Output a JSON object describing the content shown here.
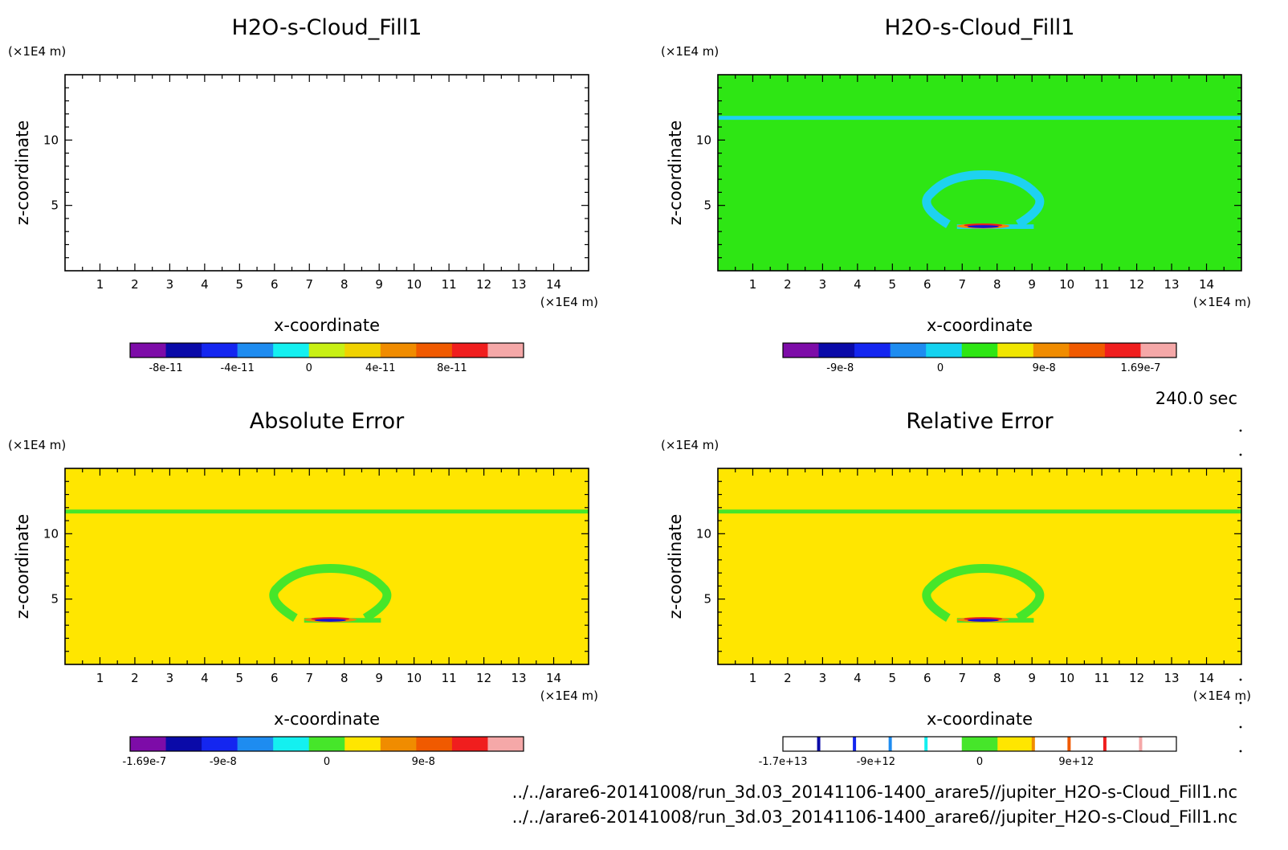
{
  "chart_data": [
    {
      "type": "heatmap",
      "title": "H2O-s-Cloud_Fill1",
      "xlabel": "x-coordinate",
      "ylabel": "z-coordinate",
      "x_unit": "(×1E4 m)",
      "y_unit": "(×1E4 m)",
      "xlim": [
        0,
        15
      ],
      "ylim": [
        0,
        15
      ],
      "x_ticks": [
        "1",
        "2",
        "3",
        "4",
        "5",
        "6",
        "7",
        "8",
        "9",
        "10",
        "11",
        "12",
        "13",
        "14"
      ],
      "y_ticks": [
        "5",
        "10"
      ],
      "field": "empty",
      "colorbar_colors": [
        "#7d0ca8",
        "#0a0aa8",
        "#1426f0",
        "#1e8cf0",
        "#14f0f0",
        "#c8f014",
        "#f0d200",
        "#f08c00",
        "#f05a00",
        "#f01e1e",
        "#f5a8a8"
      ],
      "colorbar_labels": [
        "-8e-11",
        "-4e-11",
        "0",
        "4e-11",
        "8e-11"
      ]
    },
    {
      "type": "heatmap",
      "title": "H2O-s-Cloud_Fill1",
      "xlabel": "x-coordinate",
      "ylabel": "z-coordinate",
      "x_unit": "(×1E4 m)",
      "y_unit": "(×1E4 m)",
      "xlim": [
        0,
        15
      ],
      "ylim": [
        0,
        15
      ],
      "x_ticks": [
        "1",
        "2",
        "3",
        "4",
        "5",
        "6",
        "7",
        "8",
        "9",
        "10",
        "11",
        "12",
        "13",
        "14"
      ],
      "y_ticks": [
        "5",
        "10"
      ],
      "field": "cloud",
      "background_color": "#2ee614",
      "feature_color": "#1ed2f0",
      "core_colors": [
        "#1414d2",
        "#e61e1e",
        "#f08c00"
      ],
      "colorbar_colors": [
        "#7d0ca8",
        "#0a0aa8",
        "#1426f0",
        "#1e8cf0",
        "#14d2f0",
        "#2ee614",
        "#f0e600",
        "#f08c00",
        "#f05a00",
        "#f01e1e",
        "#f5a8a8"
      ],
      "colorbar_labels": [
        "-9e-8",
        "0",
        "9e-8",
        "1.69e-7"
      ]
    },
    {
      "type": "heatmap",
      "title": "Absolute Error",
      "xlabel": "x-coordinate",
      "ylabel": "z-coordinate",
      "x_unit": "(×1E4 m)",
      "y_unit": "(×1E4 m)",
      "xlim": [
        0,
        15
      ],
      "ylim": [
        0,
        15
      ],
      "x_ticks": [
        "1",
        "2",
        "3",
        "4",
        "5",
        "6",
        "7",
        "8",
        "9",
        "10",
        "11",
        "12",
        "13",
        "14"
      ],
      "y_ticks": [
        "5",
        "10"
      ],
      "field": "cloud",
      "background_color": "#ffe600",
      "feature_color": "#46e62a",
      "core_colors": [
        "#1414d2",
        "#e61e1e",
        "#f08c00"
      ],
      "colorbar_colors": [
        "#7d0ca8",
        "#0a0aa8",
        "#1426f0",
        "#1e8cf0",
        "#14f0f0",
        "#46e62a",
        "#ffe600",
        "#f08c00",
        "#f05a00",
        "#f01e1e",
        "#f5a8a8"
      ],
      "colorbar_labels": [
        "-1.69e-7",
        "-9e-8",
        "0",
        "9e-8"
      ]
    },
    {
      "type": "heatmap",
      "title": "Relative Error",
      "xlabel": "x-coordinate",
      "ylabel": "z-coordinate",
      "x_unit": "(×1E4 m)",
      "y_unit": "(×1E4 m)",
      "xlim": [
        0,
        15
      ],
      "ylim": [
        0,
        15
      ],
      "x_ticks": [
        "1",
        "2",
        "3",
        "4",
        "5",
        "6",
        "7",
        "8",
        "9",
        "10",
        "11",
        "12",
        "13",
        "14"
      ],
      "y_ticks": [
        "5",
        "10"
      ],
      "field": "cloud",
      "background_color": "#ffe600",
      "feature_color": "#46e62a",
      "core_colors": [
        "#1414d2",
        "#e61e1e",
        "#f08c00"
      ],
      "colorbar_colors": [
        "#ffffff",
        "#ffffff",
        "#ffffff",
        "#ffffff",
        "#ffffff",
        "#46e62a",
        "#ffe600",
        "#ffffff",
        "#ffffff",
        "#ffffff",
        "#ffffff"
      ],
      "colorbar_stripes": [
        "#0a0aa8",
        "#1426f0",
        "#1e8cf0",
        "#14f0f0",
        "#f08c00",
        "#f05a00",
        "#f01e1e",
        "#f5a8a8"
      ],
      "colorbar_labels": [
        "-1.7e+13",
        "-9e+12",
        "0",
        "9e+12"
      ]
    }
  ],
  "time_label": "240.0 sec",
  "file_paths": [
    "../../arare6-20141008/run_3d.03_20141106-1400_arare5//jupiter_H2O-s-Cloud_Fill1.nc",
    "../../arare6-20141008/run_3d.03_20141106-1400_arare6//jupiter_H2O-s-Cloud_Fill1.nc"
  ]
}
